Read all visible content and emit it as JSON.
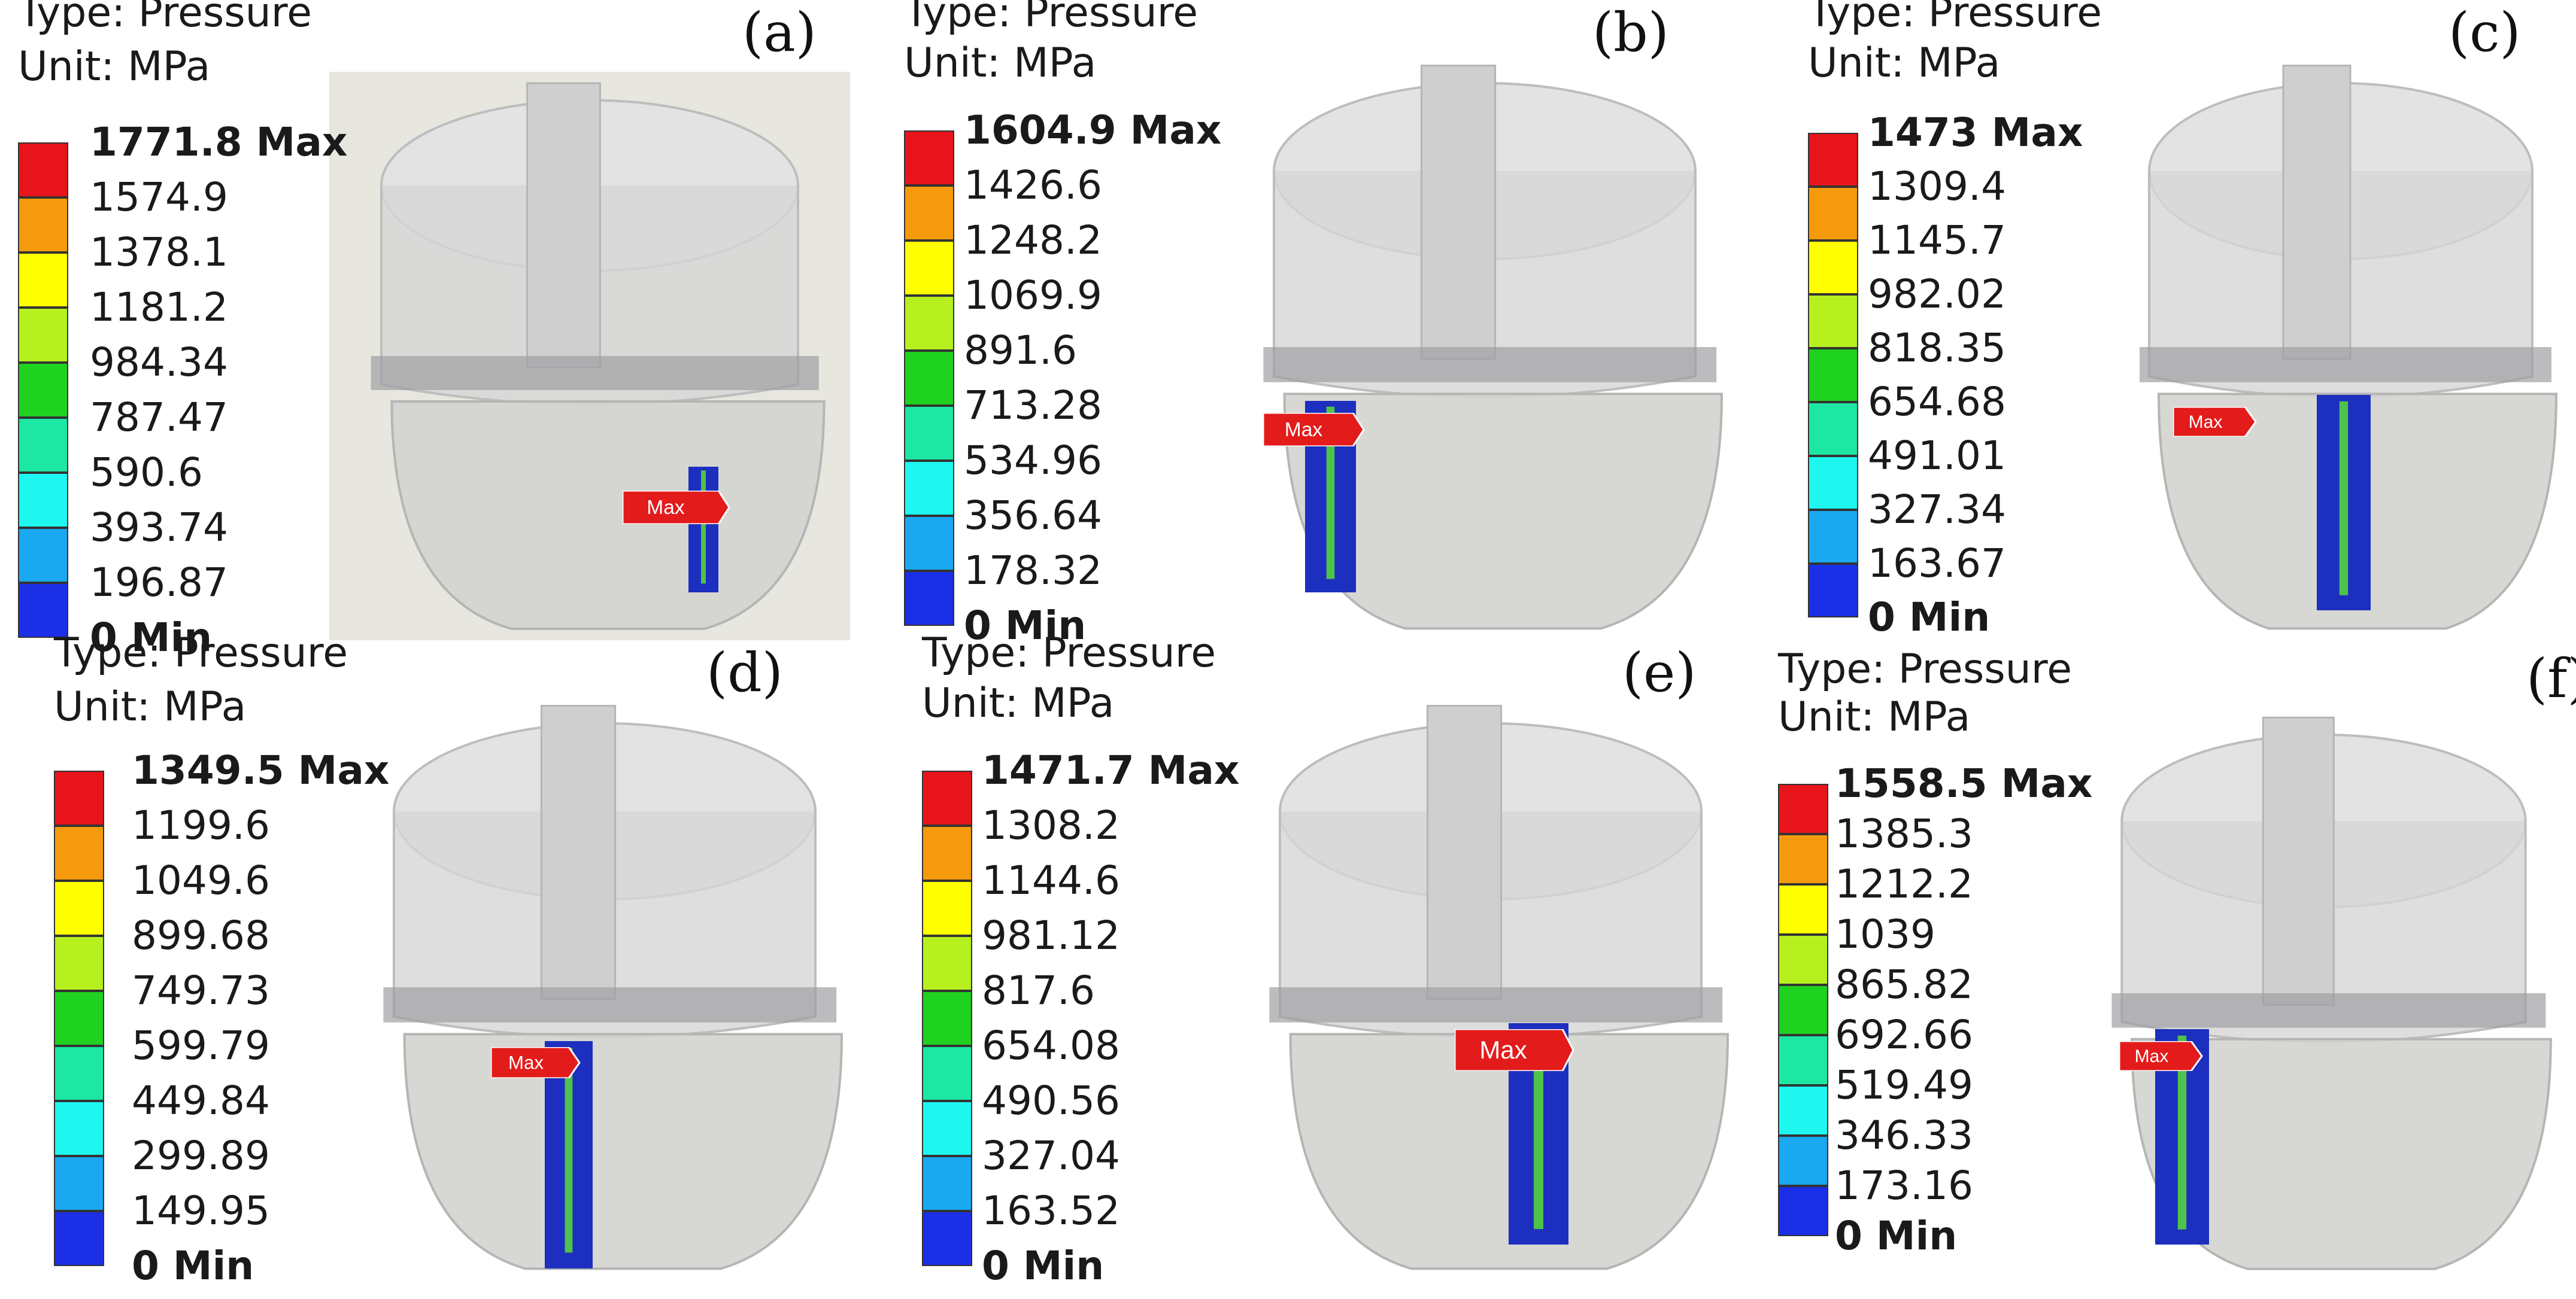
{
  "panels": [
    {
      "id": "a",
      "label": "(a)",
      "type_text": "Type: Pressure",
      "unit_text": "Unit: MPa",
      "legend": [
        "1771.8 Max",
        "1574.9",
        "1378.1",
        "1181.2",
        "984.34",
        "787.47",
        "590.6",
        "393.74",
        "196.87",
        "0 Min"
      ],
      "max_tag": "Max"
    },
    {
      "id": "b",
      "label": "(b)",
      "type_text": "Type: Pressure",
      "unit_text": "Unit: MPa",
      "legend": [
        "1604.9 Max",
        "1426.6",
        "1248.2",
        "1069.9",
        "891.6",
        "713.28",
        "534.96",
        "356.64",
        "178.32",
        "0 Min"
      ],
      "max_tag": "Max"
    },
    {
      "id": "c",
      "label": "(c)",
      "type_text": "Type: Pressure",
      "unit_text": "Unit: MPa",
      "legend": [
        "1473 Max",
        "1309.4",
        "1145.7",
        "982.02",
        "818.35",
        "654.68",
        "491.01",
        "327.34",
        "163.67",
        "0 Min"
      ],
      "max_tag": "Max"
    },
    {
      "id": "d",
      "label": "(d)",
      "type_text": "Type: Pressure",
      "unit_text": "Unit: MPa",
      "legend": [
        "1349.5 Max",
        "1199.6",
        "1049.6",
        "899.68",
        "749.73",
        "599.79",
        "449.84",
        "299.89",
        "149.95",
        "0 Min"
      ],
      "max_tag": "Max"
    },
    {
      "id": "e",
      "label": "(e)",
      "type_text": "Type: Pressure",
      "unit_text": "Unit: MPa",
      "legend": [
        "1471.7 Max",
        "1308.2",
        "1144.6",
        "981.12",
        "817.6",
        "654.08",
        "490.56",
        "327.04",
        "163.52",
        "0 Min"
      ],
      "max_tag": "Max"
    },
    {
      "id": "f",
      "label": "(f)",
      "type_text": "Type: Pressure",
      "unit_text": "Unit: MPa",
      "legend": [
        "1558.5 Max",
        "1385.3",
        "1212.2",
        "1039",
        "865.82",
        "692.66",
        "519.49",
        "346.33",
        "173.16",
        "0 Min"
      ],
      "max_tag": "Max"
    }
  ],
  "colors": {
    "scale": [
      "#e8141b",
      "#f59a0c",
      "#ffff00",
      "#b6f01f",
      "#1ed21f",
      "#1de8a3",
      "#1ef7ef",
      "#1aa8f0",
      "#1a2fe6"
    ],
    "contact_blue": "#1c2fbf",
    "contact_green": "#4fc24a",
    "flag_red": "#e31b1b"
  }
}
